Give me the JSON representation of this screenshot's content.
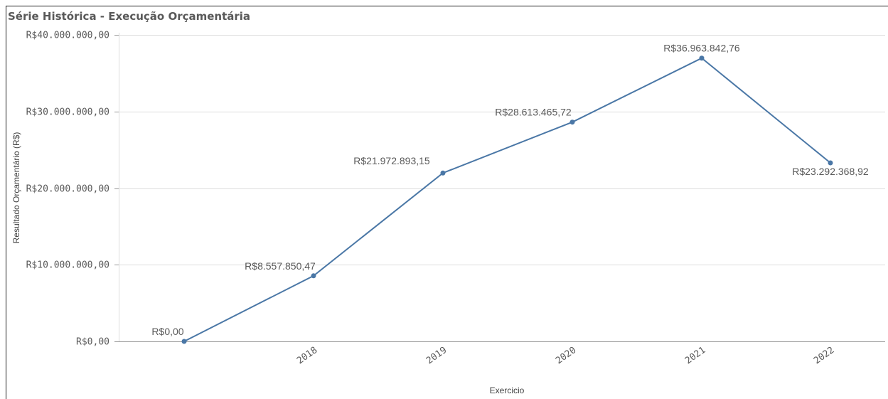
{
  "chart_data": {
    "type": "line",
    "title": "Série Histórica - Execução Orçamentária",
    "xlabel": "Exercicio",
    "ylabel": "Resultado Orçamentário (R$)",
    "categories": [
      "",
      "2018",
      "2019",
      "2020",
      "2021",
      "2022"
    ],
    "values": [
      0,
      8557850.47,
      21972893.15,
      28613465.72,
      36963842.76,
      23292368.92
    ],
    "data_labels": [
      "R$0,00",
      "R$8.557.850,47",
      "R$21.972.893,15",
      "R$28.613.465,72",
      "R$36.963.842,76",
      "R$23.292.368,92"
    ],
    "ylim": [
      0,
      40000000
    ],
    "yticks": [
      0,
      10000000,
      20000000,
      30000000,
      40000000
    ],
    "ytick_labels": [
      "R$0,00",
      "R$10.000.000,00",
      "R$20.000.000,00",
      "R$30.000.000,00",
      "R$40.000.000,00"
    ],
    "grid": true,
    "line_color": "#4a77a6"
  }
}
